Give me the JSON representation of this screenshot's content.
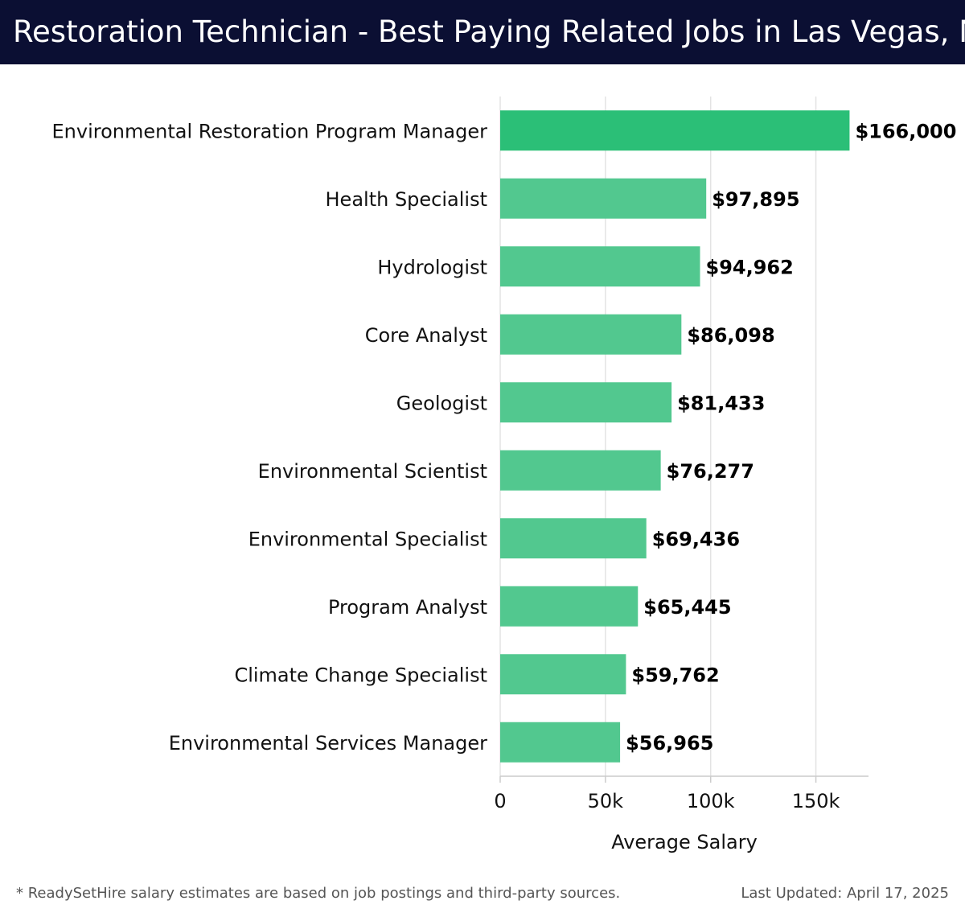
{
  "header": {
    "title": "Restoration Technician - Best Paying Related Jobs in Las Vegas, NV"
  },
  "chart_data": {
    "type": "bar",
    "orientation": "horizontal",
    "categories": [
      "Environmental Restoration Program Manager",
      "Health Specialist",
      "Hydrologist",
      "Core Analyst",
      "Geologist",
      "Environmental Scientist",
      "Environmental Specialist",
      "Program Analyst",
      "Climate Change Specialist",
      "Environmental Services Manager"
    ],
    "values": [
      166000,
      97895,
      94962,
      86098,
      81433,
      76277,
      69436,
      65445,
      59762,
      56965
    ],
    "value_labels": [
      "$166,000",
      "$97,895",
      "$94,962",
      "$86,098",
      "$81,433",
      "$76,277",
      "$69,436",
      "$65,445",
      "$59,762",
      "$56,965"
    ],
    "xlabel": "Average Salary",
    "ylabel": "",
    "xlim": [
      0,
      175000
    ],
    "xticks": [
      0,
      50000,
      100000,
      150000
    ],
    "xtick_labels": [
      "0",
      "50k",
      "100k",
      "150k"
    ],
    "grid": "vertical",
    "colors": {
      "top_bar": "#2bbf77",
      "bar": "#52c88f",
      "grid": "#e3e3e3",
      "axis": "#cccccc"
    }
  },
  "footer": {
    "note": "* ReadySetHire salary estimates are based on job postings and third-party sources.",
    "updated": "Last Updated: April 17, 2025"
  }
}
